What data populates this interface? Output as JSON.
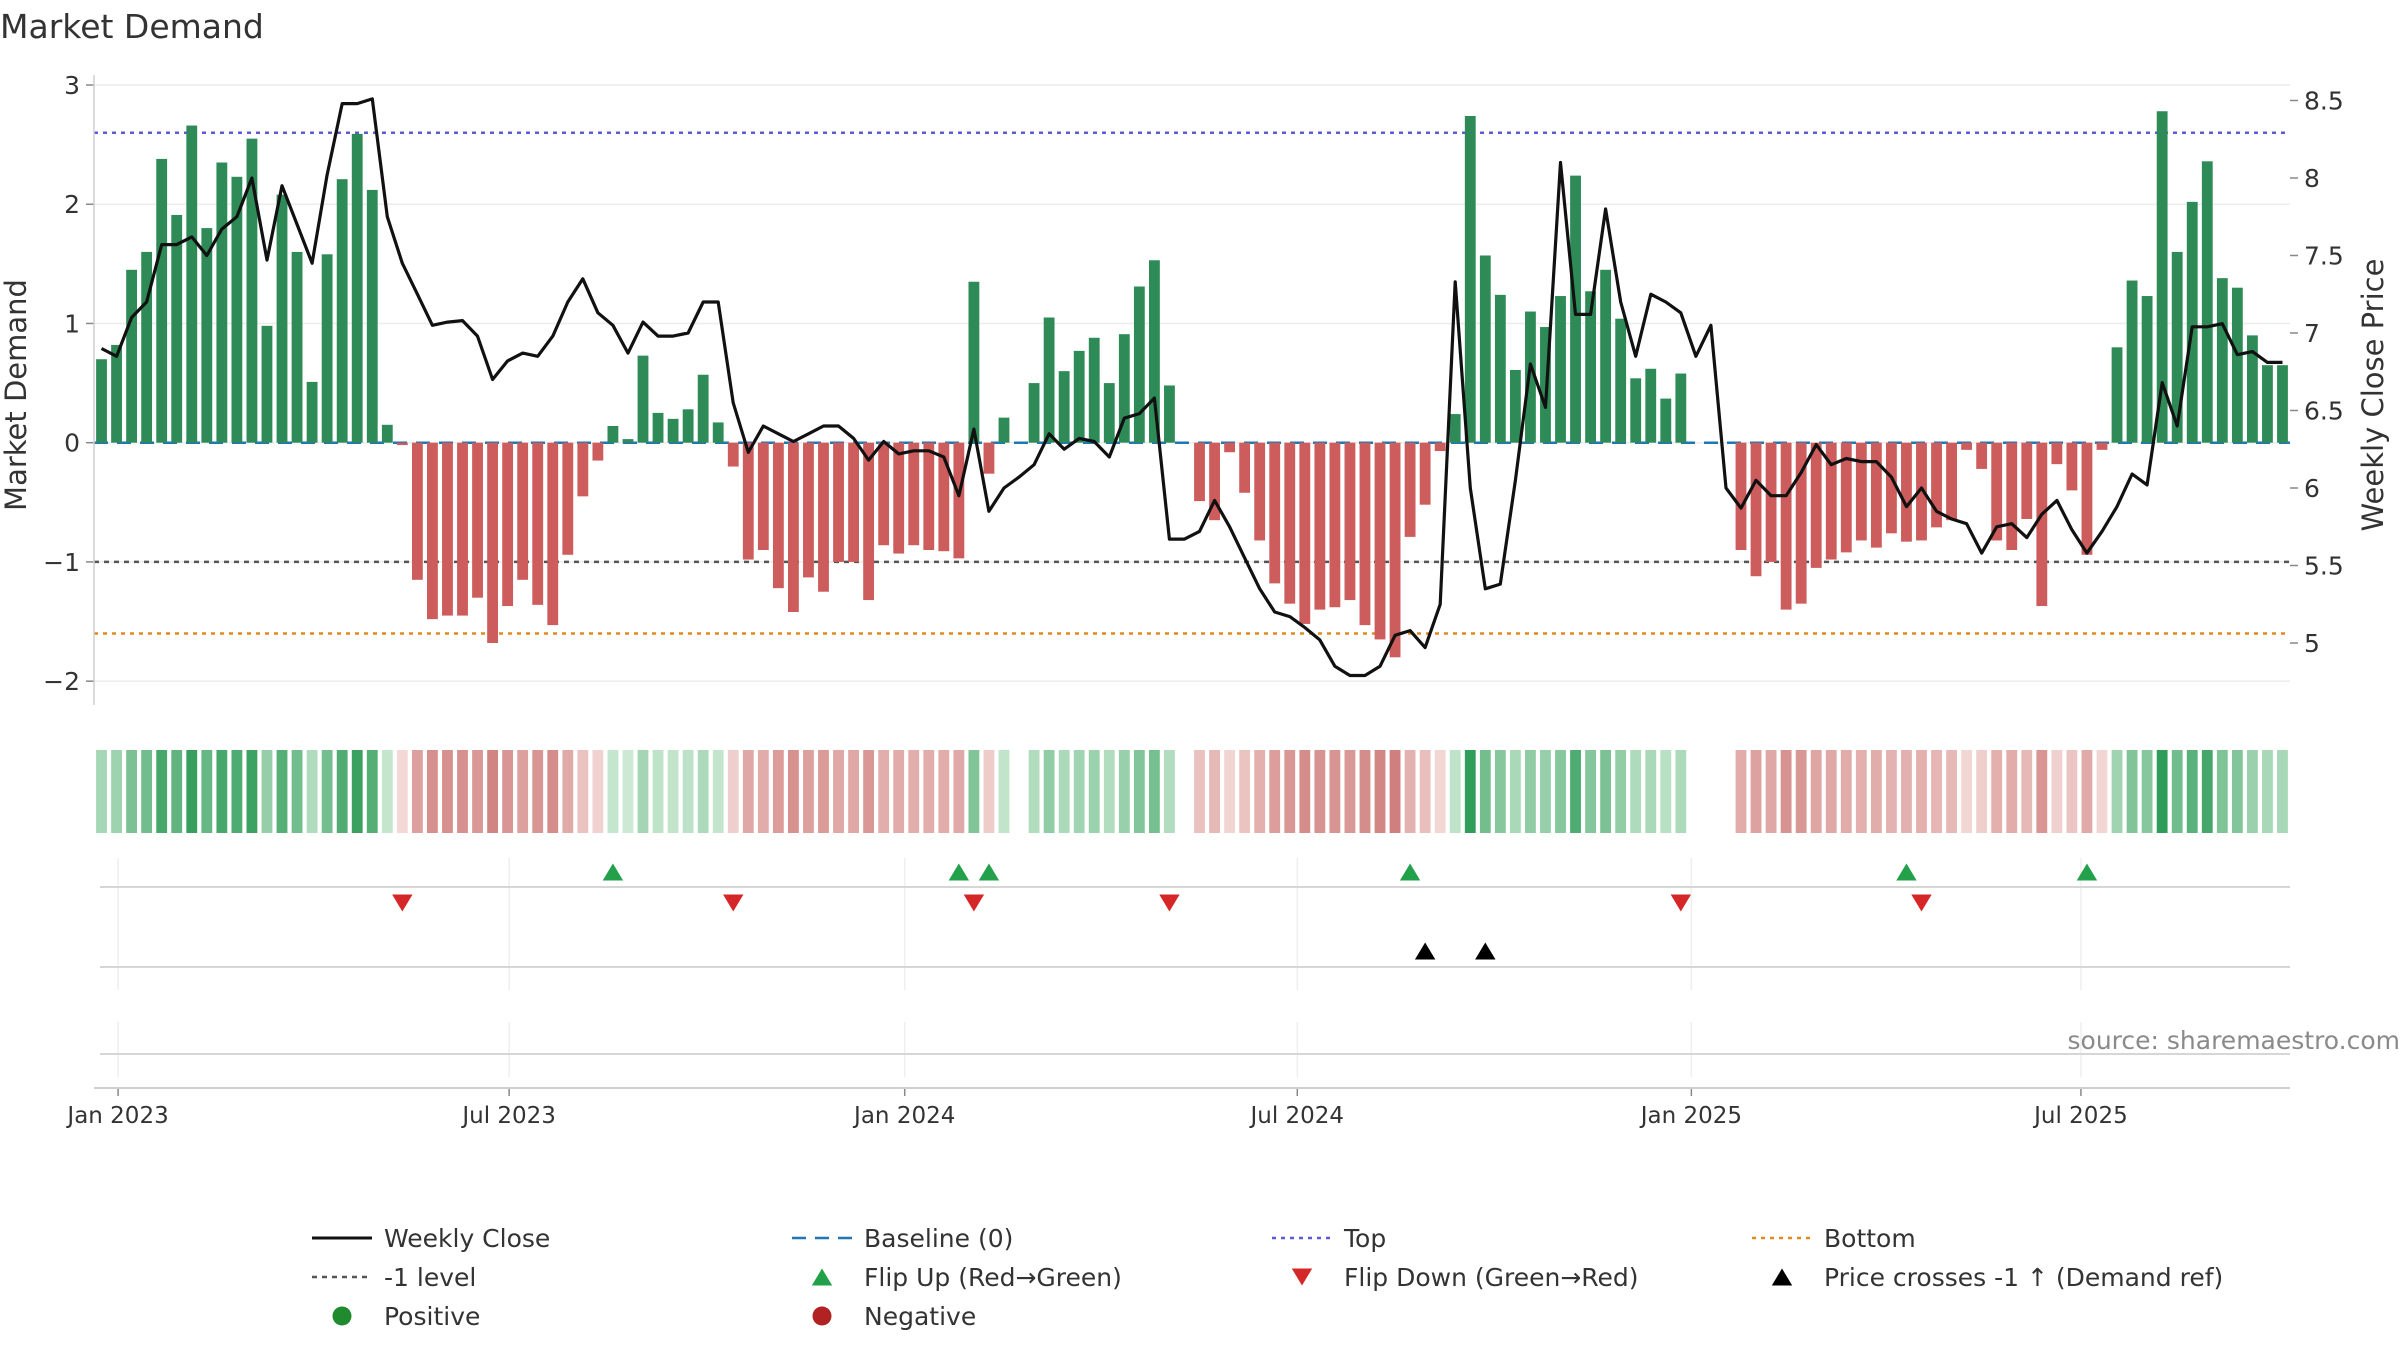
{
  "chart_data": {
    "type": "bar",
    "title": "Market Demand",
    "ylabel": "Market Demand",
    "y2label": "Weekly Close Price",
    "ylim": [
      -2.2,
      3.0
    ],
    "y2lim": [
      4.6,
      8.6
    ],
    "yticks": [
      3,
      2,
      1,
      0,
      -1,
      -2
    ],
    "ytick_labels": [
      "3",
      "2",
      "1",
      "0",
      "−1",
      "−2"
    ],
    "y2ticks": [
      8.5,
      8,
      7.5,
      7,
      6.5,
      6,
      5.5,
      5
    ],
    "y2tick_labels": [
      "8.5",
      "8",
      "7.5",
      "7",
      "6.5",
      "6",
      "5.5",
      "5"
    ],
    "xticks": [
      {
        "label": "Jan 2023",
        "week": 1.6
      },
      {
        "label": "Jul 2023",
        "week": 27.6
      },
      {
        "label": "Jan 2024",
        "week": 53.9
      },
      {
        "label": "Jul 2024",
        "week": 80.0
      },
      {
        "label": "Jan 2025",
        "week": 106.2
      },
      {
        "label": "Jul 2025",
        "week": 132.1
      }
    ],
    "reference_lines": {
      "top": 2.6,
      "bottom": -1.6,
      "minus_one": -1,
      "baseline": 0
    },
    "demand": [
      0.7,
      0.82,
      1.45,
      1.6,
      2.38,
      1.91,
      2.66,
      1.8,
      2.35,
      2.23,
      2.55,
      0.98,
      2.08,
      1.6,
      0.51,
      1.58,
      2.21,
      2.59,
      2.12,
      0.15,
      -0.02,
      -1.15,
      -1.48,
      -1.45,
      -1.45,
      -1.3,
      -1.68,
      -1.37,
      -1.15,
      -1.36,
      -1.53,
      -0.94,
      -0.45,
      -0.15,
      0.14,
      0.03,
      0.73,
      0.25,
      0.2,
      0.28,
      0.57,
      0.17,
      -0.2,
      -0.98,
      -0.9,
      -1.22,
      -1.42,
      -1.13,
      -1.25,
      -1.0,
      -1.0,
      -1.32,
      -0.86,
      -0.93,
      -0.86,
      -0.9,
      -0.91,
      -0.97,
      1.35,
      -0.26,
      0.21,
      0.0,
      0.5,
      1.05,
      0.6,
      0.77,
      0.88,
      0.5,
      0.91,
      1.31,
      1.53,
      0.48,
      0.0,
      -0.49,
      -0.65,
      -0.08,
      -0.42,
      -0.82,
      -1.18,
      -1.35,
      -1.52,
      -1.4,
      -1.38,
      -1.32,
      -1.53,
      -1.65,
      -1.8,
      -0.79,
      -0.52,
      -0.07,
      0.24,
      2.74,
      1.57,
      1.24,
      0.61,
      1.1,
      0.97,
      1.23,
      2.24,
      1.27,
      1.45,
      1.04,
      0.54,
      0.62,
      0.37,
      0.58,
      0.0,
      0.0,
      0.0,
      -0.9,
      -1.12,
      -1.0,
      -1.4,
      -1.35,
      -1.05,
      -0.98,
      -0.92,
      -0.82,
      -0.88,
      -0.76,
      -0.83,
      -0.82,
      -0.71,
      -0.65,
      -0.06,
      -0.22,
      -0.82,
      -0.9,
      -0.64,
      -1.37,
      -0.18,
      -0.4,
      -0.94,
      -0.06,
      0.8,
      1.36,
      1.23,
      2.78,
      1.6,
      2.02,
      2.36,
      1.38,
      1.3,
      0.9,
      0.65,
      0.65
    ],
    "close": [
      6.9,
      6.85,
      7.1,
      7.2,
      7.57,
      7.57,
      7.62,
      7.5,
      7.67,
      7.75,
      8.0,
      7.47,
      7.95,
      7.7,
      7.45,
      8.02,
      8.48,
      8.48,
      8.51,
      7.75,
      7.45,
      7.25,
      7.05,
      7.07,
      7.08,
      6.98,
      6.7,
      6.82,
      6.87,
      6.85,
      6.98,
      7.2,
      7.35,
      7.13,
      7.05,
      6.87,
      7.07,
      6.98,
      6.98,
      7.0,
      7.2,
      7.2,
      6.55,
      6.23,
      6.4,
      6.35,
      6.3,
      6.35,
      6.4,
      6.4,
      6.32,
      6.18,
      6.3,
      6.22,
      6.24,
      6.24,
      6.2,
      5.95,
      6.38,
      5.85,
      6.0,
      6.07,
      6.15,
      6.35,
      6.25,
      6.32,
      6.3,
      6.2,
      6.45,
      6.48,
      6.58,
      5.67,
      5.67,
      5.72,
      5.92,
      5.75,
      5.55,
      5.35,
      5.2,
      5.17,
      5.1,
      5.02,
      4.85,
      4.79,
      4.79,
      4.85,
      5.05,
      5.08,
      4.97,
      5.25,
      7.33,
      6.0,
      5.35,
      5.38,
      6.05,
      6.8,
      6.52,
      8.1,
      7.12,
      7.12,
      7.8,
      7.2,
      6.85,
      7.25,
      7.2,
      7.13,
      6.85,
      7.05,
      6.0,
      5.87,
      6.05,
      5.95,
      5.95,
      6.1,
      6.28,
      6.15,
      6.19,
      6.17,
      6.17,
      6.07,
      5.88,
      6.0,
      5.85,
      5.8,
      5.77,
      5.58,
      5.75,
      5.77,
      5.68,
      5.83,
      5.92,
      5.73,
      5.58,
      5.72,
      5.88,
      6.09,
      6.02,
      6.68,
      6.4,
      7.04,
      7.04,
      7.06,
      6.86,
      6.88,
      6.81,
      6.81
    ],
    "flip_up_weeks": [
      34,
      57,
      59,
      87,
      120,
      132
    ],
    "flip_down_weeks": [
      20,
      42,
      58,
      71,
      105,
      121
    ],
    "price_cross_weeks": [
      88,
      92
    ],
    "annotation": "source: sharemaestro.com"
  },
  "legend": [
    {
      "label": "Weekly Close",
      "marker": "line"
    },
    {
      "label": "Baseline (0)",
      "marker": "dash"
    },
    {
      "label": "Top",
      "marker": "dot-purple"
    },
    {
      "label": "Bottom",
      "marker": "dot-orange"
    },
    {
      "label": "-1 level",
      "marker": "dot-gray"
    },
    {
      "label": "Flip Up (Red→Green)",
      "marker": "tri-up-green"
    },
    {
      "label": "Flip Down (Green→Red)",
      "marker": "tri-down-red"
    },
    {
      "label": "Price crosses -1 ↑ (Demand ref)",
      "marker": "tri-up-black"
    },
    {
      "label": "Positive",
      "marker": "circle-green"
    },
    {
      "label": "Negative",
      "marker": "circle-red"
    }
  ],
  "colors": {
    "positive": "#2e8b57",
    "negative": "#cd5c5c",
    "price": "#111111",
    "baseline": "#1f77b4",
    "top": "#5b5bd6",
    "bottom": "#e08a1e",
    "minus_one": "#555555",
    "flip_up": "#22a04a",
    "flip_down": "#d62728",
    "cross": "#000000",
    "legend_positive": "#1f8a2e",
    "legend_negative": "#b22222"
  }
}
